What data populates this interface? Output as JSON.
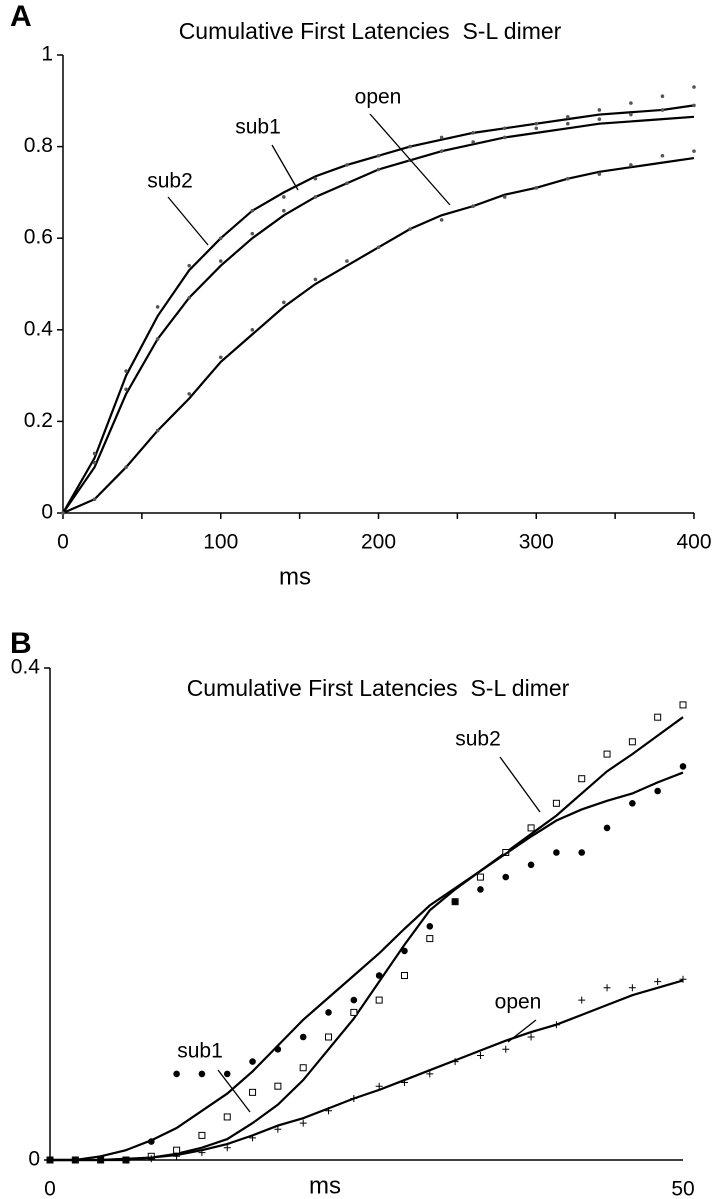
{
  "chart_data": [
    {
      "type": "line",
      "panel": "A",
      "title": "Cumulative First Latencies  S-L dimer",
      "x_label": "ms",
      "x": [
        0,
        20,
        40,
        60,
        80,
        100,
        120,
        140,
        160,
        180,
        200,
        220,
        240,
        260,
        280,
        300,
        320,
        340,
        360,
        380,
        400
      ],
      "xlim": [
        0,
        400
      ],
      "xticks": [
        0,
        100,
        200,
        300,
        400
      ],
      "ylim": [
        0,
        1
      ],
      "yticks": [
        0,
        0.2,
        0.4,
        0.6,
        0.8,
        1
      ],
      "series": [
        {
          "name": "sub2",
          "color": "#000000",
          "marker": "dot",
          "values": [
            0,
            0.13,
            0.31,
            0.45,
            0.54,
            0.6,
            0.66,
            0.69,
            0.73,
            0.76,
            0.78,
            0.8,
            0.82,
            0.83,
            0.84,
            0.85,
            0.865,
            0.88,
            0.895,
            0.91,
            0.93
          ],
          "fit": [
            0,
            0.12,
            0.3,
            0.43,
            0.53,
            0.6,
            0.66,
            0.7,
            0.735,
            0.76,
            0.78,
            0.8,
            0.815,
            0.83,
            0.84,
            0.85,
            0.86,
            0.87,
            0.875,
            0.88,
            0.89
          ]
        },
        {
          "name": "sub1",
          "color": "#000000",
          "marker": "dot",
          "values": [
            0,
            0.11,
            0.27,
            0.38,
            0.47,
            0.55,
            0.61,
            0.66,
            0.69,
            0.72,
            0.75,
            0.77,
            0.79,
            0.81,
            0.82,
            0.84,
            0.85,
            0.86,
            0.87,
            0.88,
            0.89
          ],
          "fit": [
            0,
            0.1,
            0.26,
            0.38,
            0.47,
            0.54,
            0.6,
            0.65,
            0.69,
            0.72,
            0.75,
            0.77,
            0.79,
            0.805,
            0.82,
            0.83,
            0.84,
            0.85,
            0.855,
            0.86,
            0.865
          ]
        },
        {
          "name": "open",
          "color": "#000000",
          "marker": "dot",
          "values": [
            0,
            0.03,
            0.1,
            0.18,
            0.26,
            0.34,
            0.4,
            0.46,
            0.51,
            0.55,
            0.58,
            0.62,
            0.64,
            0.67,
            0.69,
            0.71,
            0.73,
            0.74,
            0.76,
            0.78,
            0.79
          ],
          "fit": [
            0,
            0.03,
            0.1,
            0.18,
            0.25,
            0.33,
            0.39,
            0.45,
            0.5,
            0.54,
            0.58,
            0.62,
            0.65,
            0.67,
            0.695,
            0.71,
            0.73,
            0.745,
            0.755,
            0.765,
            0.775
          ]
        }
      ]
    },
    {
      "type": "line",
      "panel": "B",
      "title": "Cumulative First Latencies  S-L dimer",
      "x_label": "ms",
      "x": [
        0,
        2,
        4,
        6,
        8,
        10,
        12,
        14,
        16,
        18,
        20,
        22,
        24,
        26,
        28,
        30,
        32,
        34,
        36,
        38,
        40,
        42,
        44,
        46,
        48,
        50
      ],
      "xlim": [
        0,
        50
      ],
      "xticks": [
        0,
        50
      ],
      "ylim": [
        0,
        0.4
      ],
      "yticks": [
        0,
        0.4
      ],
      "series": [
        {
          "name": "sub2",
          "color": "#000000",
          "marker": "square",
          "values": [
            0,
            0,
            0,
            0,
            0.003,
            0.008,
            0.02,
            0.035,
            0.055,
            0.06,
            0.075,
            0.1,
            0.12,
            0.13,
            0.15,
            0.18,
            0.21,
            0.23,
            0.25,
            0.27,
            0.29,
            0.31,
            0.33,
            0.34,
            0.36,
            0.37
          ],
          "fit": [
            0,
            0,
            0,
            0,
            0.002,
            0.005,
            0.01,
            0.017,
            0.03,
            0.045,
            0.065,
            0.09,
            0.115,
            0.145,
            0.175,
            0.203,
            0.22,
            0.235,
            0.25,
            0.265,
            0.28,
            0.298,
            0.316,
            0.33,
            0.345,
            0.36
          ]
        },
        {
          "name": "sub1",
          "color": "#000000",
          "marker": "circle",
          "values": [
            0,
            0,
            0,
            0,
            0.015,
            0.07,
            0.07,
            0.07,
            0.08,
            0.09,
            0.1,
            0.12,
            0.13,
            0.15,
            0.17,
            0.19,
            0.21,
            0.22,
            0.23,
            0.24,
            0.25,
            0.25,
            0.27,
            0.29,
            0.3,
            0.32
          ],
          "fit": [
            0,
            0,
            0.003,
            0.008,
            0.016,
            0.026,
            0.04,
            0.054,
            0.072,
            0.093,
            0.114,
            0.132,
            0.15,
            0.168,
            0.188,
            0.207,
            0.221,
            0.235,
            0.249,
            0.263,
            0.276,
            0.285,
            0.292,
            0.298,
            0.307,
            0.315
          ]
        },
        {
          "name": "open",
          "color": "#000000",
          "marker": "plus",
          "values": [
            0,
            0,
            0,
            0,
            0.001,
            0.003,
            0.006,
            0.01,
            0.018,
            0.025,
            0.03,
            0.04,
            0.05,
            0.06,
            0.063,
            0.07,
            0.08,
            0.085,
            0.09,
            0.1,
            0.11,
            0.13,
            0.14,
            0.14,
            0.145,
            0.147
          ],
          "fit": [
            0,
            0,
            0,
            0.001,
            0.002,
            0.004,
            0.008,
            0.013,
            0.02,
            0.028,
            0.034,
            0.042,
            0.05,
            0.057,
            0.065,
            0.073,
            0.081,
            0.089,
            0.097,
            0.104,
            0.11,
            0.118,
            0.126,
            0.134,
            0.14,
            0.146
          ]
        }
      ]
    }
  ]
}
